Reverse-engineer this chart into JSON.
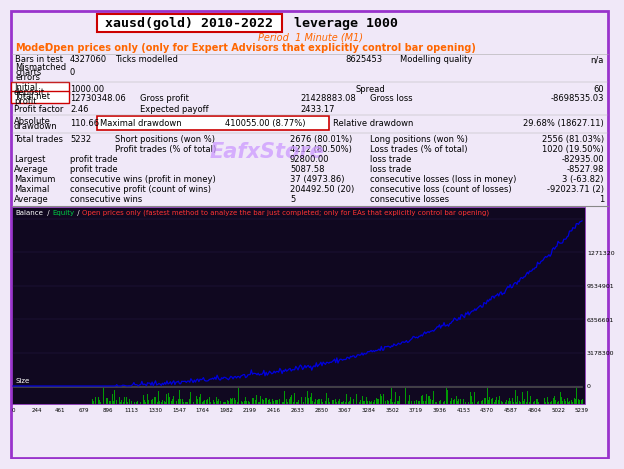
{
  "title_boxed": "xausd(gold) 2010-2022",
  "title_rest": " leverage 1000",
  "subtitle": "Period  1 Minute (M1)",
  "model_label": "Model",
  "model_text": "Open prices only (only for Expert Advisors that explicitly control bar opening)",
  "bg_color": "#f0e8f8",
  "red_box_color": "#cc0000",
  "orange_color": "#ff6600",
  "purple_border": "#9933cc",
  "watermark_text": "EafxStore",
  "watermark_color": "#cc99ff",
  "chart_bg": "#100820",
  "chart_grid": "#2a2050",
  "balance_color": "#0000dd",
  "equity_color": "#00cc44",
  "size_color": "#00bb00",
  "x_tick_labels": [
    "0",
    "244",
    "461",
    "679",
    "896",
    "1113",
    "1330",
    "1547",
    "1764",
    "1982",
    "2199",
    "2416",
    "2633",
    "2850",
    "3067",
    "3284",
    "3502",
    "3719",
    "3936",
    "4153",
    "4370",
    "4587",
    "4804",
    "5022",
    "5239"
  ],
  "y_tick_labels": [
    "1271320",
    "9534901",
    "6356601",
    "3178300",
    "0"
  ]
}
